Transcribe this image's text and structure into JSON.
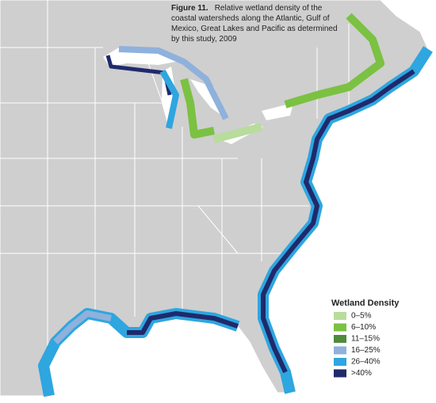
{
  "figure": {
    "label": "Figure 11.",
    "caption": "Relative wetland density of the coastal watersheds along the Atlantic, Gulf of Mexico, Great Lakes and Pacific as determined by this study, 2009"
  },
  "legend": {
    "title": "Wetland Density",
    "items": [
      {
        "label": "0–5%",
        "color": "#b8dc9c"
      },
      {
        "label": "6–10%",
        "color": "#7bc142"
      },
      {
        "label": "11–15%",
        "color": "#4f8b3b"
      },
      {
        "label": "16–25%",
        "color": "#8fb1dc"
      },
      {
        "label": "26–40%",
        "color": "#2ea6df"
      },
      {
        "label": ">40%",
        "color": "#1f2a6c"
      }
    ]
  }
}
